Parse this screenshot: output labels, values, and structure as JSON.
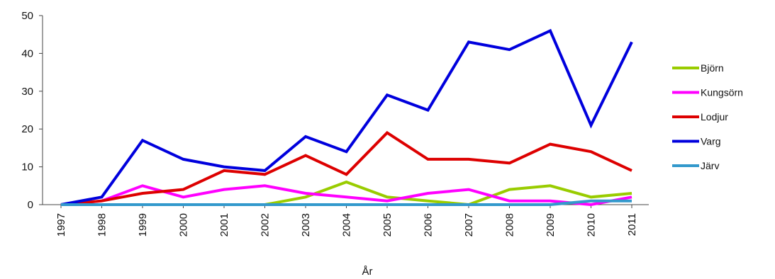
{
  "chart_data": {
    "type": "line",
    "title": "",
    "xlabel": "År",
    "ylabel": "",
    "ylim": [
      0,
      50
    ],
    "yticks": [
      0,
      10,
      20,
      30,
      40,
      50
    ],
    "grid": false,
    "legend_position": "right",
    "x": [
      "1997",
      "1998",
      "1999",
      "2000",
      "2001",
      "2002",
      "2003",
      "2004",
      "2005",
      "2006",
      "2007",
      "2008",
      "2009",
      "2010",
      "2011"
    ],
    "series": [
      {
        "name": "Björn",
        "color": "#99cc00",
        "values": [
          0,
          0,
          0,
          0,
          0,
          0,
          2,
          6,
          2,
          1,
          0,
          4,
          5,
          2,
          3
        ]
      },
      {
        "name": "Kungsörn",
        "color": "#ff00ff",
        "values": [
          0,
          1,
          5,
          2,
          4,
          5,
          3,
          2,
          1,
          3,
          4,
          1,
          1,
          0,
          2
        ]
      },
      {
        "name": "Lodjur",
        "color": "#dd0000",
        "values": [
          0,
          1,
          3,
          4,
          9,
          8,
          13,
          8,
          19,
          12,
          12,
          11,
          16,
          14,
          9
        ]
      },
      {
        "name": "Varg",
        "color": "#0000dd",
        "values": [
          0,
          2,
          17,
          12,
          10,
          9,
          18,
          14,
          29,
          25,
          43,
          41,
          46,
          21,
          43
        ]
      },
      {
        "name": "Järv",
        "color": "#3399cc",
        "values": [
          0,
          0,
          0,
          0,
          0,
          0,
          0,
          0,
          0,
          0,
          0,
          0,
          0,
          1,
          1
        ]
      }
    ]
  }
}
